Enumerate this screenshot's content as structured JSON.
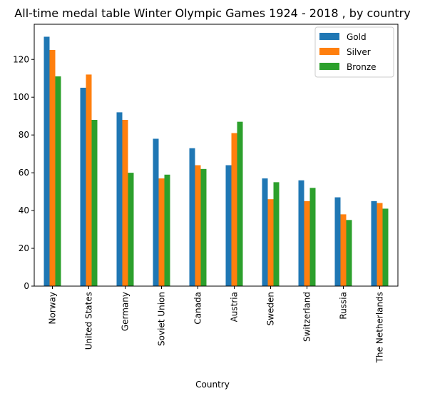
{
  "chart_data": {
    "type": "bar",
    "title": "All-time medal table Winter Olympic Games 1924 - 2018 , by country",
    "xlabel": "Country",
    "ylabel": "",
    "categories": [
      "Norway",
      "United States",
      "Germany",
      "Soviet Union",
      "Canada",
      "Austria",
      "Sweden",
      "Switzerland",
      "Russia",
      "The Netherlands"
    ],
    "series": [
      {
        "name": "Gold",
        "color": "#1f77b4",
        "values": [
          132,
          105,
          92,
          78,
          73,
          64,
          57,
          56,
          47,
          45
        ]
      },
      {
        "name": "Silver",
        "color": "#ff7f0e",
        "values": [
          125,
          112,
          88,
          57,
          64,
          81,
          46,
          45,
          38,
          44
        ]
      },
      {
        "name": "Bronze",
        "color": "#2ca02c",
        "values": [
          111,
          88,
          60,
          59,
          62,
          87,
          55,
          52,
          35,
          41
        ]
      }
    ],
    "yticks": [
      0,
      20,
      40,
      60,
      80,
      100,
      120
    ],
    "ylim": [
      0,
      138.6
    ],
    "grid": false,
    "legend_position": "top-right"
  }
}
